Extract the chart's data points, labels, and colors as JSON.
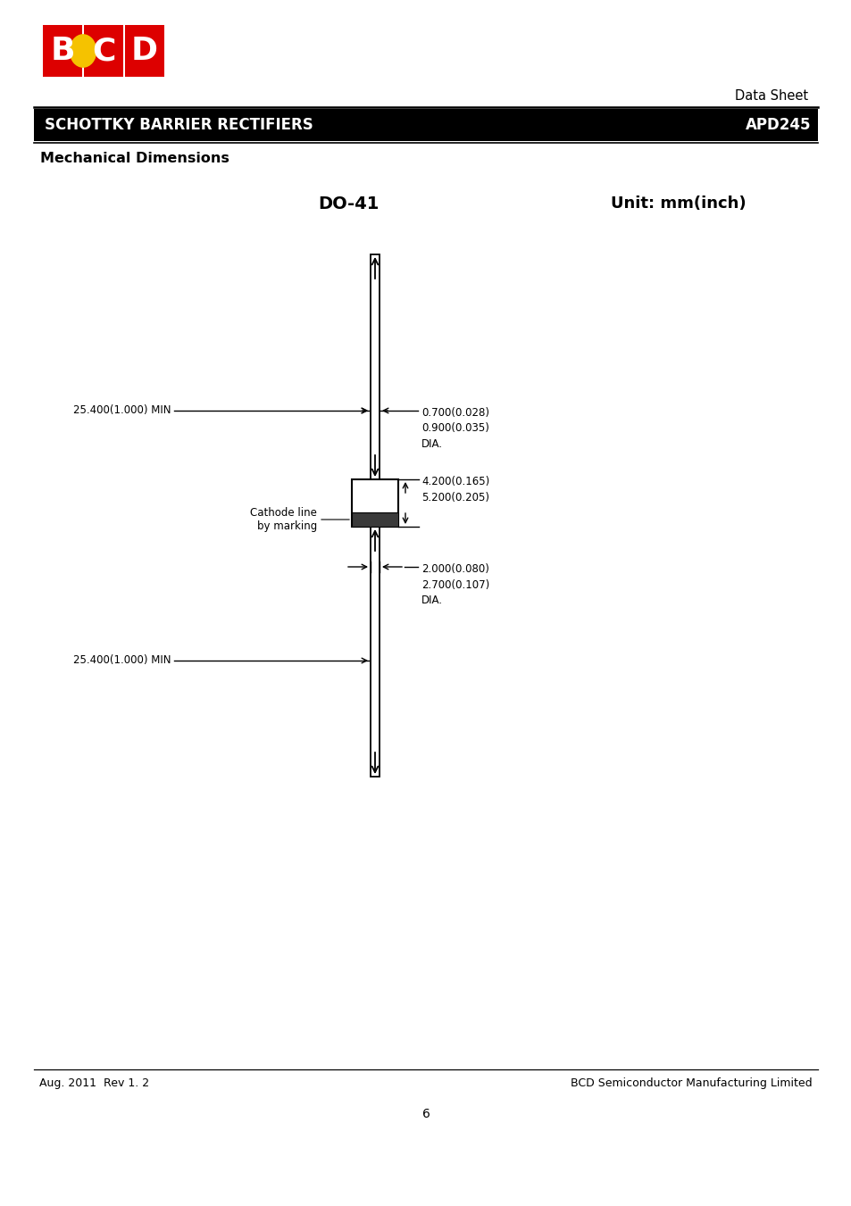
{
  "bg_color": "#ffffff",
  "page_width": 9.54,
  "page_height": 13.51,
  "header_bar_color": "#000000",
  "header_text_left": "SCHOTTKY BARRIER RECTIFIERS",
  "header_text_right": "APD245",
  "header_text_color": "#ffffff",
  "section_title": "Mechanical Dimensions",
  "diagram_title_left": "DO-41",
  "diagram_title_right": "Unit: mm(inch)",
  "dim_wire_top_label": "25.400(1.000) MIN",
  "dim_wire_bottom_label": "25.400(1.000) MIN",
  "cathode_label": "Cathode line\nby marking",
  "footer_left": "Aug. 2011  Rev 1. 2",
  "footer_right": "BCD Semiconductor Manufacturing Limited",
  "page_number": "6"
}
